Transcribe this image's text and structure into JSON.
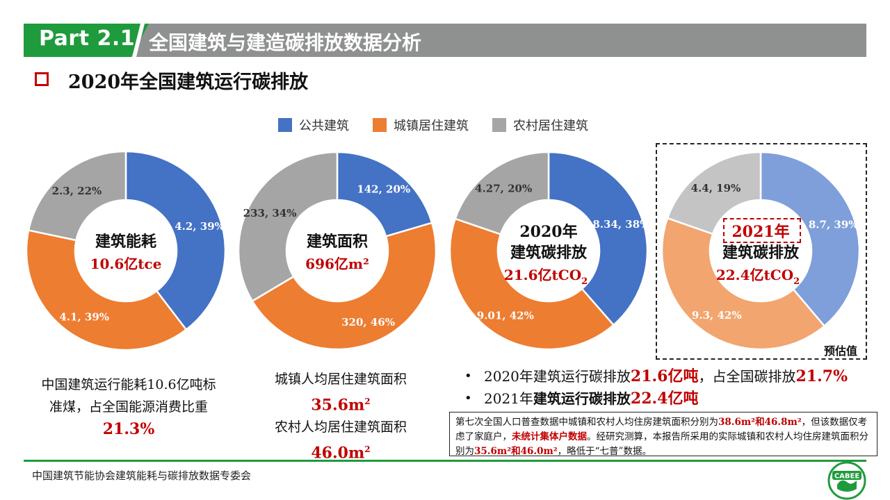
{
  "header": {
    "part": "Part 2.1",
    "title": "全国建筑与建造碳排放数据分析"
  },
  "section_title": "2020年全国建筑运行碳排放",
  "colors": {
    "public": "#4472c4",
    "urban": "#ed7d31",
    "rural": "#a5a5a5",
    "public_light": "#7f9fda",
    "urban_light": "#f2a56f",
    "rural_light": "#c4c4c4",
    "accent_red": "#c00000",
    "brand_green": "#1e9b3c"
  },
  "legend": [
    {
      "label": "公共建筑",
      "color": "#4472c4"
    },
    {
      "label": "城镇居住建筑",
      "color": "#ed7d31"
    },
    {
      "label": "农村居住建筑",
      "color": "#a5a5a5"
    }
  ],
  "chart_data": [
    {
      "type": "pie",
      "donut": true,
      "title": "建筑能耗",
      "total": "10.6亿tce",
      "categories": [
        "公共建筑",
        "城镇居住建筑",
        "农村居住建筑"
      ],
      "values": [
        4.2,
        4.1,
        2.3
      ],
      "percents": [
        39,
        39,
        22
      ],
      "labels": [
        "4.2, 39%",
        "4.1, 39%",
        "2.3, 22%"
      ]
    },
    {
      "type": "pie",
      "donut": true,
      "title": "建筑面积",
      "total": "696亿m²",
      "categories": [
        "公共建筑",
        "城镇居住建筑",
        "农村居住建筑"
      ],
      "values": [
        142,
        320,
        233
      ],
      "percents": [
        20,
        46,
        34
      ],
      "labels": [
        "142, 20%",
        "320, 46%",
        "233, 34%"
      ]
    },
    {
      "type": "pie",
      "donut": true,
      "title_line1": "2020年",
      "title": "建筑碳排放",
      "total_main": "21.6亿tCO",
      "total_sub": "2",
      "categories": [
        "公共建筑",
        "城镇居住建筑",
        "农村居住建筑"
      ],
      "values": [
        8.34,
        9.01,
        4.27
      ],
      "percents": [
        38,
        42,
        20
      ],
      "labels": [
        "8.34, 38%",
        "9.01, 42%",
        "4.27, 20%"
      ]
    },
    {
      "type": "pie",
      "donut": true,
      "estimate": true,
      "title_line1": "2021年",
      "title": "建筑碳排放",
      "total_main": "22.4亿tCO",
      "total_sub": "2",
      "categories": [
        "公共建筑",
        "城镇居住建筑",
        "农村居住建筑"
      ],
      "values": [
        8.7,
        9.3,
        4.4
      ],
      "percents": [
        39,
        42,
        19
      ],
      "labels": [
        "8.7, 39%",
        "9.3, 42%",
        "4.4, 19%"
      ]
    }
  ],
  "estimate_label": "预估值",
  "text_energy": {
    "line1": "中国建筑运行能耗10.6亿吨标",
    "line2": "准煤，占全国能源消费比重",
    "value": "21.3%"
  },
  "text_area": {
    "urban_label": "城镇人均居住建筑面积",
    "urban_value": "35.6m",
    "rural_label": "农村人均居住建筑面积",
    "rural_value": "46.0m",
    "unit_sup": "2"
  },
  "bullets": [
    {
      "prefix": "2020年建筑运行碳排放",
      "value": "21.6亿吨",
      "mid": "，占全国碳排放",
      "value2": "21.7%"
    },
    {
      "prefix": "2021年",
      "mid_bold": "建筑运行碳排放",
      "value": "22.4亿吨"
    }
  ],
  "note": {
    "p1": "第七次全国人口普查数据中城镇和农村人均住房建筑面积分别为",
    "v1": "38.6m²和46.8m²",
    "p2": "，但该数据仅考虑了家庭户，",
    "v2": "未统计集体户数据",
    "p3": "。经研究测算，本报告所采用的实际城镇和农村人均住房建筑面积分别为",
    "v3": "35.6m²和46.0m²",
    "p4": "，略低于“七普”数据。"
  },
  "footer": "中国建筑节能协会建筑能耗与碳排放数据专委会",
  "logo_text": "CABEE"
}
